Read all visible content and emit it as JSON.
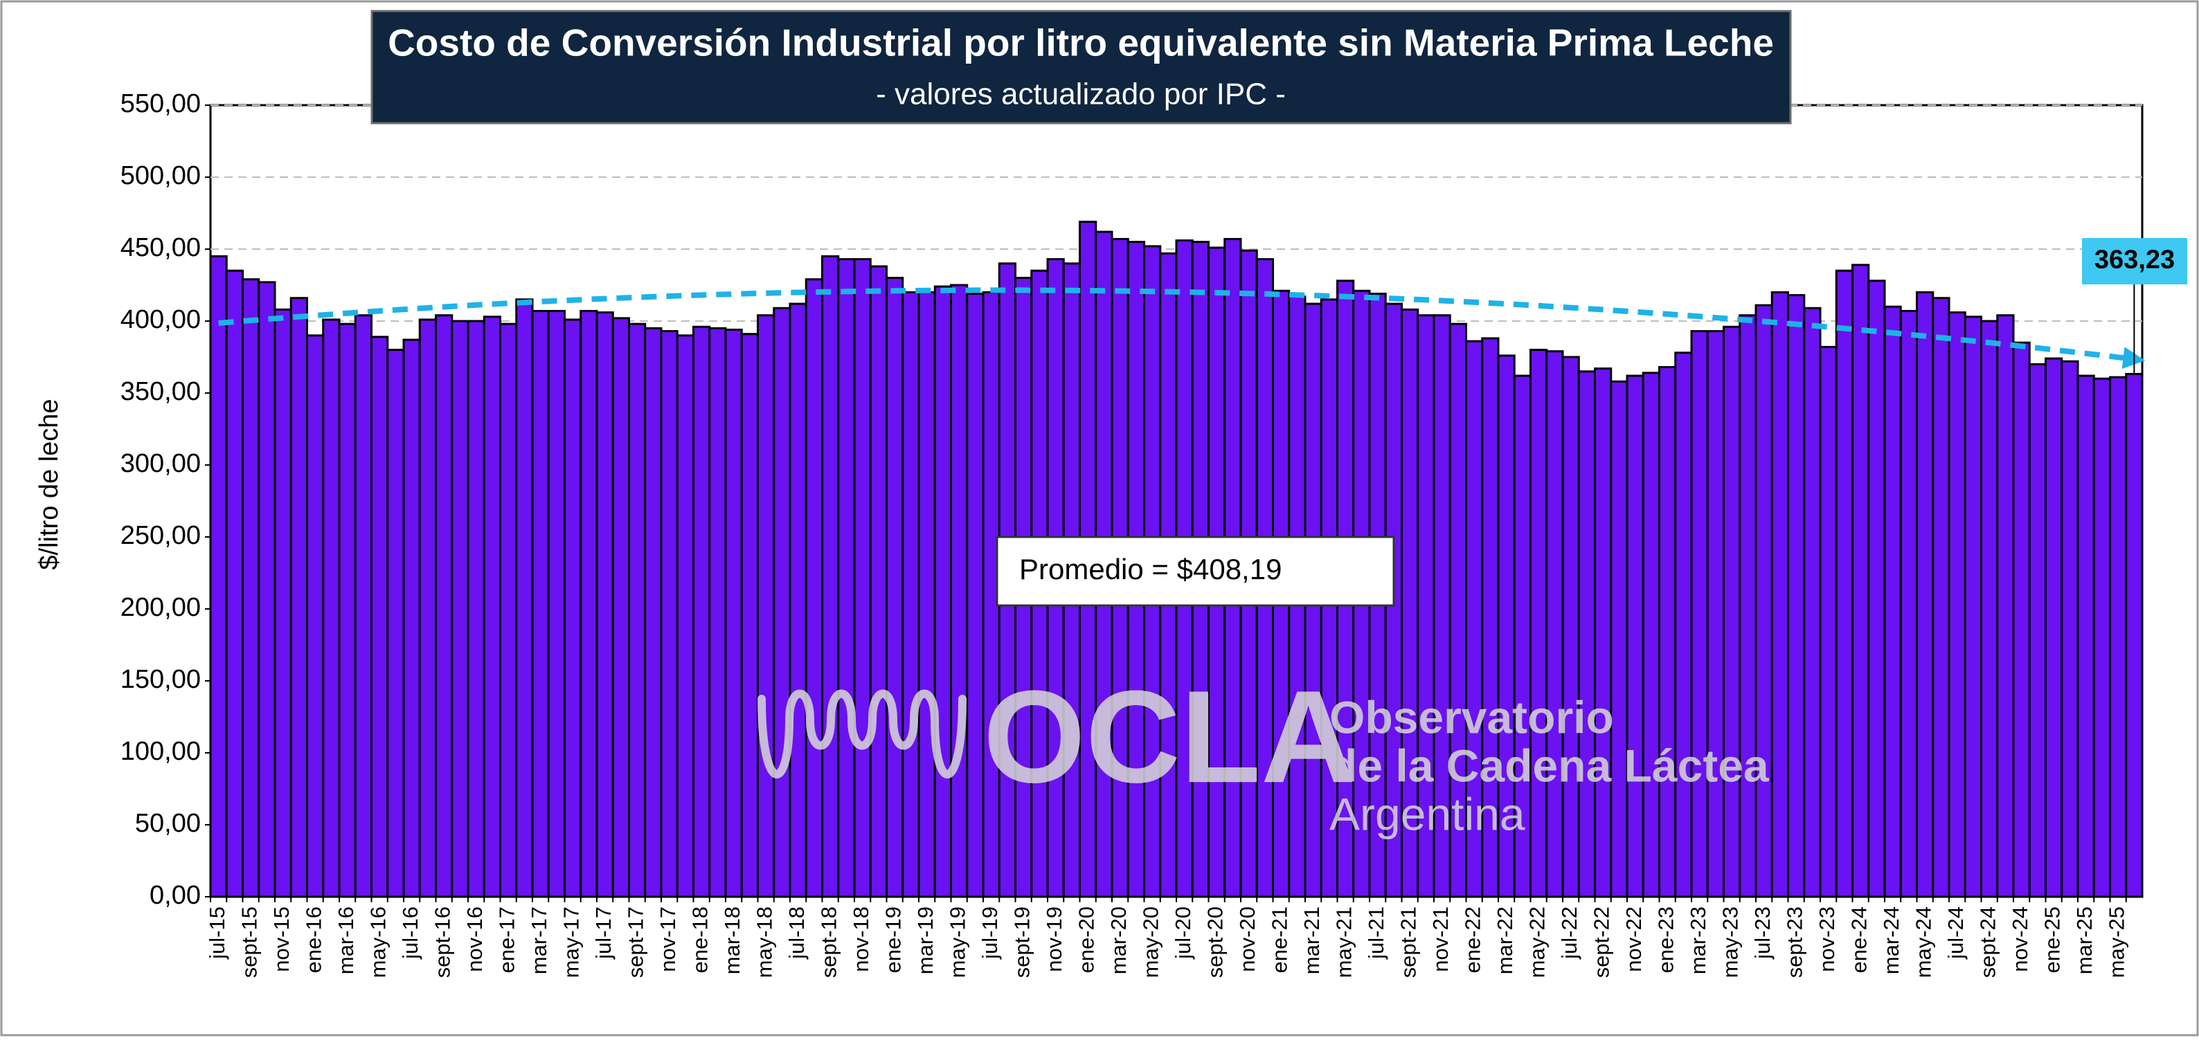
{
  "chart_data": {
    "type": "bar",
    "title": "Costo de Conversión Industrial por litro equivalente sin Materia Prima Leche",
    "subtitle": "- valores actualizado por IPC -",
    "y_axis_label": "$/litro de leche",
    "color": "#6a12f2",
    "grid": true,
    "trendline": {
      "type": "polynomial",
      "order": 2,
      "color": "#1fb2e8"
    },
    "average_label": "Promedio = $408,19",
    "last_value_label": "363,23",
    "watermark": {
      "logo": "OCLA",
      "line1": "Observatorio",
      "line2": "de la Cadena Láctea",
      "line3": "Argentina"
    },
    "ylim": [
      0,
      550
    ],
    "yticks": [
      {
        "value": 0,
        "label": "0,00"
      },
      {
        "value": 50,
        "label": "50,00"
      },
      {
        "value": 100,
        "label": "100,00"
      },
      {
        "value": 150,
        "label": "150,00"
      },
      {
        "value": 200,
        "label": "200,00"
      },
      {
        "value": 250,
        "label": "250,00"
      },
      {
        "value": 300,
        "label": "300,00"
      },
      {
        "value": 350,
        "label": "350,00"
      },
      {
        "value": 400,
        "label": "400,00"
      },
      {
        "value": 450,
        "label": "450,00"
      },
      {
        "value": 500,
        "label": "500,00"
      },
      {
        "value": 550,
        "label": "550,00"
      }
    ],
    "categories": [
      "jul-15",
      null,
      "sept-15",
      null,
      "nov-15",
      null,
      "ene-16",
      null,
      "mar-16",
      null,
      "may-16",
      null,
      "jul-16",
      null,
      "sept-16",
      null,
      "nov-16",
      null,
      "ene-17",
      null,
      "mar-17",
      null,
      "may-17",
      null,
      "jul-17",
      null,
      "sept-17",
      null,
      "nov-17",
      null,
      "ene-18",
      null,
      "mar-18",
      null,
      "may-18",
      null,
      "jul-18",
      null,
      "sept-18",
      null,
      "nov-18",
      null,
      "ene-19",
      null,
      "mar-19",
      null,
      "may-19",
      null,
      "jul-19",
      null,
      "sept-19",
      null,
      "nov-19",
      null,
      "ene-20",
      null,
      "mar-20",
      null,
      "may-20",
      null,
      "jul-20",
      null,
      "sept-20",
      null,
      "nov-20",
      null,
      "ene-21",
      null,
      "mar-21",
      null,
      "may-21",
      null,
      "jul-21",
      null,
      "sept-21",
      null,
      "nov-21",
      null,
      "ene-22",
      null,
      "mar-22",
      null,
      "may-22",
      null,
      "jul-22",
      null,
      "sept-22",
      null,
      "nov-22",
      null,
      "ene-23",
      null,
      "mar-23",
      null,
      "may-23",
      null,
      "jul-23",
      null,
      "sept-23",
      null,
      "nov-23",
      null,
      "ene-24",
      null,
      "mar-24",
      null,
      "may-24",
      null,
      "jul-24",
      null,
      "sept-24",
      null,
      "nov-24",
      null,
      "ene-25",
      null,
      "mar-25",
      null,
      "may-25",
      null
    ],
    "values": [
      445,
      435,
      429,
      427,
      408,
      416,
      390,
      401,
      398,
      404,
      389,
      380,
      387,
      401,
      404,
      400,
      400,
      403,
      398,
      415,
      407,
      407,
      401,
      407,
      406,
      402,
      398,
      395,
      393,
      390,
      396,
      395,
      394,
      391,
      404,
      409,
      412,
      429,
      445,
      443,
      443,
      438,
      430,
      420,
      420,
      424,
      425,
      419,
      420,
      440,
      430,
      435,
      443,
      440,
      469,
      462,
      457,
      455,
      452,
      447,
      456,
      455,
      451,
      457,
      449,
      443,
      421,
      417,
      412,
      415,
      428,
      421,
      419,
      412,
      408,
      404,
      404,
      398,
      386,
      388,
      376,
      362,
      380,
      379,
      375,
      365,
      367,
      358,
      362,
      364,
      368,
      378,
      393,
      393,
      396,
      404,
      411,
      420,
      418,
      409,
      382,
      435,
      439,
      428,
      410,
      407,
      420,
      416,
      406,
      403,
      400,
      404,
      385,
      370,
      374,
      372,
      362,
      360,
      361,
      363.23
    ]
  }
}
